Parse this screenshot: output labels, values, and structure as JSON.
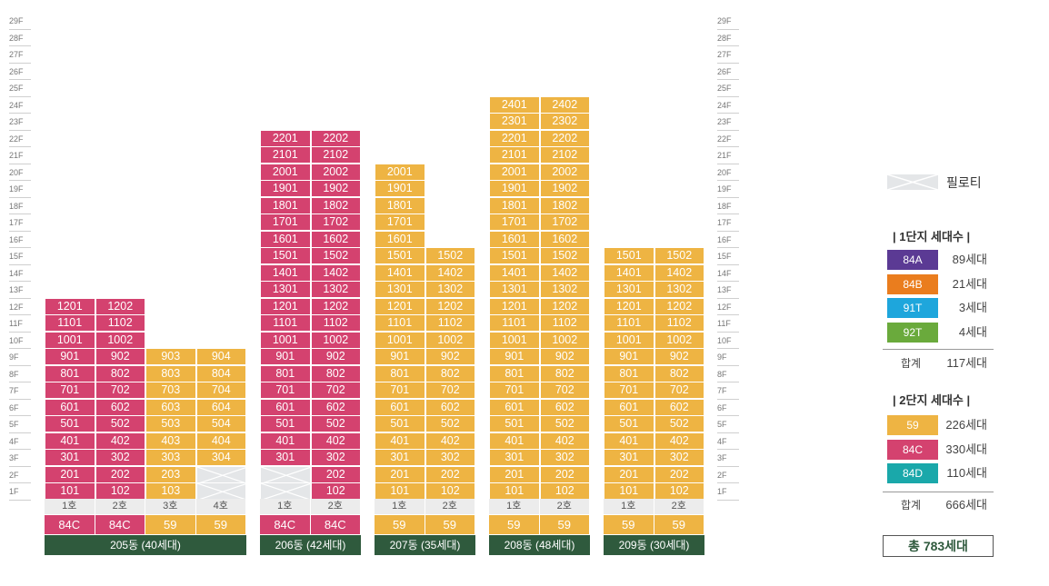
{
  "floors": [
    "29F",
    "28F",
    "27F",
    "26F",
    "25F",
    "24F",
    "23F",
    "22F",
    "21F",
    "20F",
    "19F",
    "18F",
    "17F",
    "16F",
    "15F",
    "14F",
    "13F",
    "12F",
    "11F",
    "10F",
    "9F",
    "8F",
    "7F",
    "6F",
    "5F",
    "4F",
    "3F",
    "2F",
    "1F"
  ],
  "buildings": [
    {
      "label": "205동 (40세대)",
      "columns": [
        {
          "ho": "1호",
          "type": "84C",
          "color": "pink",
          "top_floor": 12,
          "piloti_floors": []
        },
        {
          "ho": "2호",
          "type": "84C",
          "color": "pink",
          "top_floor": 12,
          "piloti_floors": []
        },
        {
          "ho": "3호",
          "type": "59",
          "color": "yellow",
          "top_floor": 9,
          "piloti_floors": []
        },
        {
          "ho": "4호",
          "type": "59",
          "color": "yellow",
          "top_floor": 9,
          "piloti_floors": [
            1,
            2
          ]
        }
      ]
    },
    {
      "label": "206동 (42세대)",
      "columns": [
        {
          "ho": "1호",
          "type": "84C",
          "color": "pink",
          "top_floor": 22,
          "piloti_floors": [
            1,
            2
          ]
        },
        {
          "ho": "2호",
          "type": "84C",
          "color": "pink",
          "top_floor": 22,
          "piloti_floors": []
        }
      ]
    },
    {
      "label": "207동 (35세대)",
      "columns": [
        {
          "ho": "1호",
          "type": "59",
          "color": "yellow",
          "top_floor": 20,
          "piloti_floors": []
        },
        {
          "ho": "2호",
          "type": "59",
          "color": "yellow",
          "top_floor": 15,
          "piloti_floors": []
        }
      ]
    },
    {
      "label": "208동 (48세대)",
      "columns": [
        {
          "ho": "1호",
          "type": "59",
          "color": "yellow",
          "top_floor": 24,
          "piloti_floors": []
        },
        {
          "ho": "2호",
          "type": "59",
          "color": "yellow",
          "top_floor": 24,
          "piloti_floors": []
        }
      ]
    },
    {
      "label": "209동 (30세대)",
      "columns": [
        {
          "ho": "1호",
          "type": "59",
          "color": "yellow",
          "top_floor": 15,
          "piloti_floors": []
        },
        {
          "ho": "2호",
          "type": "59",
          "color": "yellow",
          "top_floor": 15,
          "piloti_floors": []
        }
      ]
    }
  ],
  "legend": {
    "piloti_label": "필로티",
    "complex1": {
      "title": "| 1단지 세대수 |",
      "items": [
        {
          "type": "84A",
          "count": "89세대",
          "color": "#5b3a94"
        },
        {
          "type": "84B",
          "count": "21세대",
          "color": "#ea7d1e"
        },
        {
          "type": "91T",
          "count": "3세대",
          "color": "#1ea6dc"
        },
        {
          "type": "92T",
          "count": "4세대",
          "color": "#6aaa3c"
        }
      ],
      "total_label": "합계",
      "total": "117세대"
    },
    "complex2": {
      "title": "| 2단지 세대수 |",
      "items": [
        {
          "type": "59",
          "count": "226세대",
          "color": "#eeb443"
        },
        {
          "type": "84C",
          "count": "330세대",
          "color": "#d4426f"
        },
        {
          "type": "84D",
          "count": "110세대",
          "color": "#1aa8aa"
        }
      ],
      "total_label": "합계",
      "total": "666세대"
    },
    "grand_total": "총 783세대"
  },
  "colors": {
    "pink": "#d4426f",
    "yellow": "#eeb443",
    "building_label": "#2f5a3d",
    "piloti": "#e4e6e8"
  }
}
